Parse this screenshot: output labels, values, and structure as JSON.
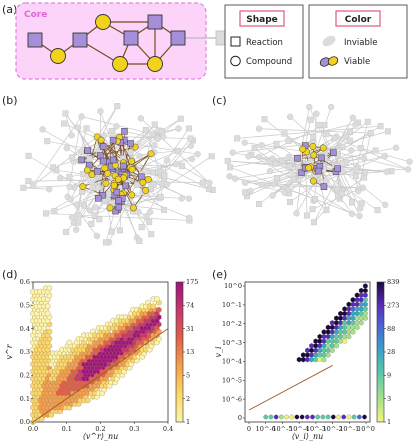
{
  "panels": {
    "a": "(a)",
    "b": "(b)",
    "c": "(c)",
    "d": "(d)",
    "e": "(e)"
  },
  "core_label": "Core",
  "legend": {
    "shape_title": "Shape",
    "color_title": "Color",
    "reaction": "Reaction",
    "compound": "Compound",
    "inviable": "Inviable",
    "viable": "Viable"
  },
  "colors": {
    "core_fill": "#fcd4fa",
    "core_border": "#e87ee0",
    "compound": "#f2d21c",
    "reaction": "#a58fd8",
    "inviable": "#dcdcdc",
    "edge_core": "#7a4a1e",
    "edge_grey": "#c9c9c9",
    "diag_line": "#9a5a2a",
    "legend_title_border": "#e05a7a"
  },
  "chart_data": [
    {
      "panel": "d",
      "type": "heatmap",
      "xlabel": "⟨v^r⟩_nu",
      "ylabel": "v^r",
      "xlim": [
        0.0,
        0.4
      ],
      "ylim": [
        0.0,
        0.6
      ],
      "x_ticks": [
        "0.0",
        "0.1",
        "0.2",
        "0.3",
        "0.4"
      ],
      "y_ticks": [
        "0.0",
        "0.1",
        "0.2",
        "0.3",
        "0.4",
        "0.5",
        "0.6"
      ],
      "colorbar_ticks": [
        "175",
        "74",
        "31",
        "13",
        "5",
        "2",
        "1"
      ],
      "reference_line": "y = x"
    },
    {
      "panel": "e",
      "type": "heatmap",
      "xlabel": "⟨v_i⟩_nu",
      "ylabel": "v_i",
      "x_ticks": [
        "0",
        "10^-6",
        "10^-5",
        "10^-4",
        "10^-3",
        "10^-2",
        "10^-1",
        "10^0"
      ],
      "y_ticks": [
        "10^0",
        "10^-1",
        "10^-2",
        "10^-3",
        "10^-4",
        "10^-5",
        "10^-6",
        "0"
      ],
      "colorbar_ticks": [
        "839",
        "273",
        "88",
        "28",
        "9",
        "3",
        "1"
      ],
      "reference_line": "y = x"
    }
  ]
}
